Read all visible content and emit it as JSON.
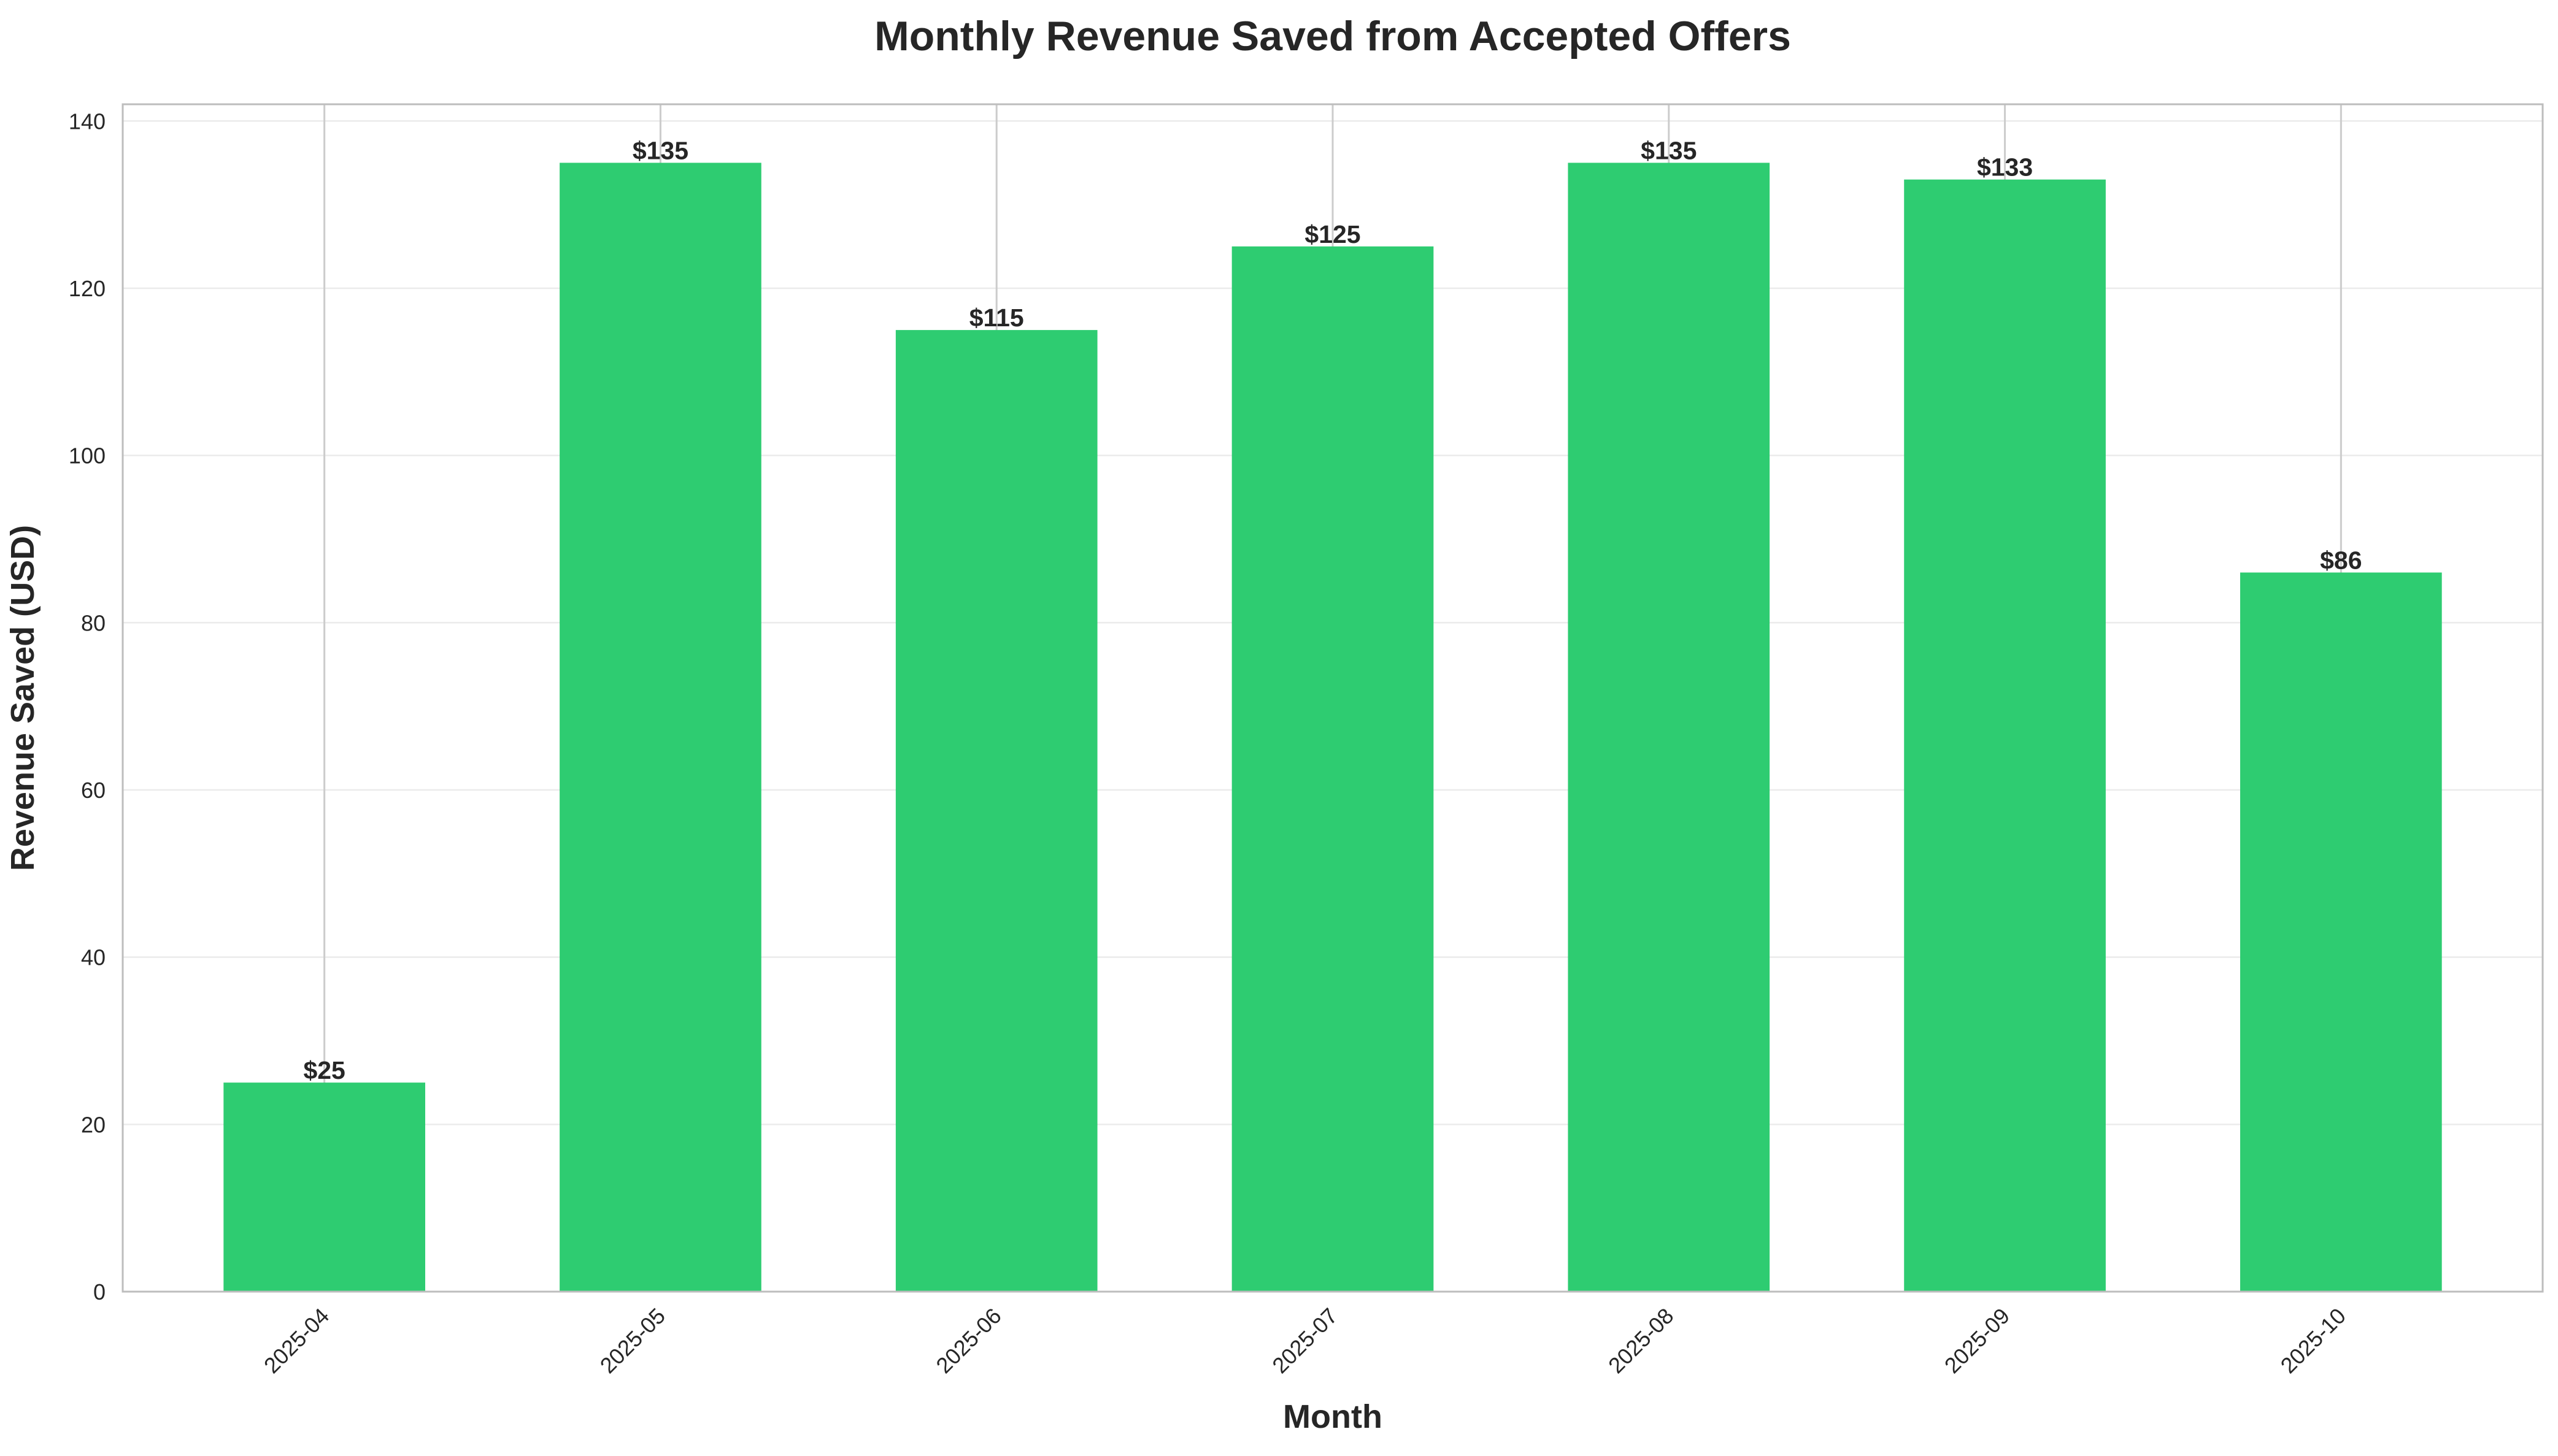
{
  "chart_data": {
    "type": "bar",
    "title": "Monthly Revenue Saved from Accepted Offers",
    "xlabel": "Month",
    "ylabel": "Revenue Saved (USD)",
    "categories": [
      "2025-04",
      "2025-05",
      "2025-06",
      "2025-07",
      "2025-08",
      "2025-09",
      "2025-10"
    ],
    "values": [
      25,
      135,
      115,
      125,
      135,
      133,
      86
    ],
    "data_labels": [
      "$25",
      "$135",
      "$115",
      "$125",
      "$135",
      "$133",
      "$86"
    ],
    "ylim": [
      0,
      142
    ],
    "yticks": [
      0,
      20,
      40,
      60,
      80,
      100,
      120,
      140
    ],
    "ytick_labels": [
      "0",
      "20",
      "40",
      "60",
      "80",
      "100",
      "120",
      "140"
    ],
    "grid": true,
    "colors": {
      "bar": "#2ecc71",
      "grid": "#ebebeb",
      "vertical_grid": "#cccccc",
      "axes_border": "#bdbdbd",
      "text": "#262626"
    }
  }
}
